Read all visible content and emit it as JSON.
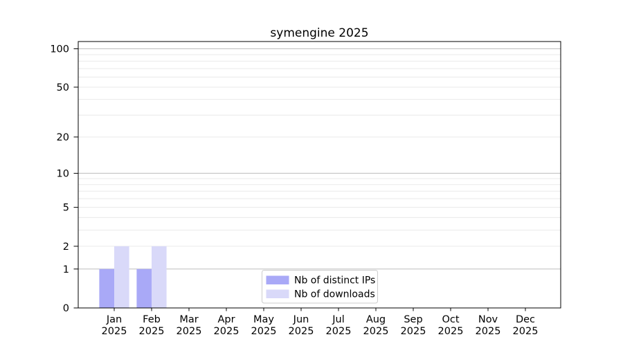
{
  "title": "symengine 2025",
  "chart_data": {
    "type": "bar",
    "title": "symengine 2025",
    "categories": [
      "Jan",
      "Feb",
      "Mar",
      "Apr",
      "May",
      "Jun",
      "Jul",
      "Aug",
      "Sep",
      "Oct",
      "Nov",
      "Dec"
    ],
    "year": "2025",
    "series": [
      {
        "name": "Nb of distinct IPs",
        "color": "#a9a9f7",
        "values": [
          1,
          1,
          0,
          0,
          0,
          0,
          0,
          0,
          0,
          0,
          0,
          0
        ]
      },
      {
        "name": "Nb of downloads",
        "color": "#d9d9f9",
        "values": [
          2,
          2,
          0,
          0,
          0,
          0,
          0,
          0,
          0,
          0,
          0,
          0
        ]
      }
    ],
    "xlabel": "",
    "ylabel": "",
    "y_axis": {
      "scale": "log1p",
      "tick_values": [
        0,
        1,
        2,
        5,
        10,
        20,
        50,
        100
      ],
      "major_grid_values": [
        1,
        10,
        100
      ],
      "minor_grid_values": [
        2,
        3,
        4,
        5,
        6,
        7,
        8,
        9,
        20,
        30,
        40,
        50,
        60,
        70,
        80,
        90
      ],
      "ylim": [
        0,
        114
      ]
    },
    "grid": true,
    "legend_position": "lower center"
  },
  "colors": {
    "background": "#ffffff",
    "bar_distinct_ips": "#a9a9f7",
    "bar_downloads": "#d9d9f9",
    "grid_major": "#bdbdbd",
    "grid_minor": "#eaeaea",
    "axis": "#000000",
    "tick": "#000000",
    "legend_border": "#cccccc",
    "legend_bg": "#ffffff",
    "text": "#000000"
  }
}
